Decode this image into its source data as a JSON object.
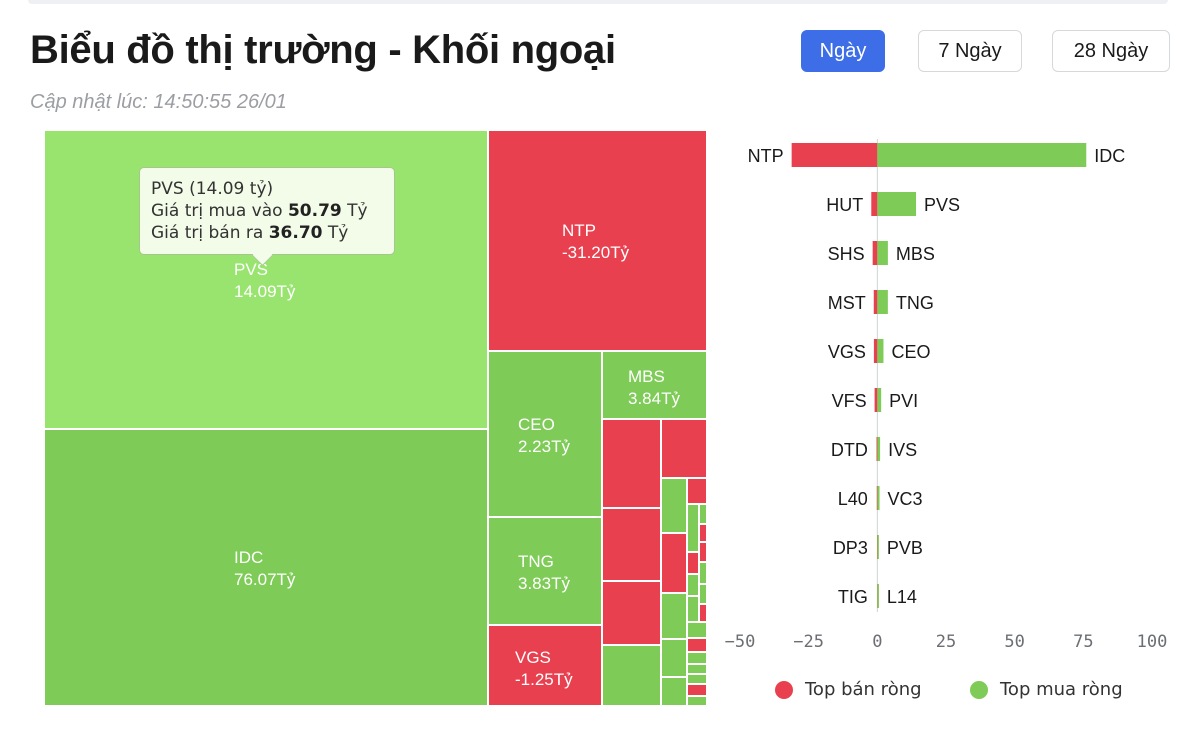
{
  "header": {
    "title": "Biểu đồ thị trường - Khối ngoại",
    "updated": "Cập nhật lúc: 14:50:55 26/01"
  },
  "tabs": [
    {
      "label": "Ngày",
      "active": true
    },
    {
      "label": "7 Ngày",
      "active": false
    },
    {
      "label": "28 Ngày",
      "active": false
    }
  ],
  "colors": {
    "buy": "#7ecb57",
    "buy_highlight": "#98e46f",
    "sell": "#e8404f",
    "accent": "#3d6ee8"
  },
  "tooltip": {
    "line1": "PVS (14.09 tỷ)",
    "line2_prefix": "Giá trị mua vào ",
    "line2_value": "50.79",
    "line2_unit": " Tỷ",
    "line3_prefix": "Giá trị bán ra ",
    "line3_value": "36.70",
    "line3_unit": " Tỷ"
  },
  "chart_data": [
    {
      "type": "treemap",
      "unit": "Tỷ",
      "labeled_cells": [
        {
          "name": "IDC",
          "label": "76.07Tỷ",
          "value": 76.07
        },
        {
          "name": "PVS",
          "label": "14.09Tỷ",
          "value": 14.09,
          "highlighted": true
        },
        {
          "name": "NTP",
          "label": "-31.20Tỷ",
          "value": -31.2
        },
        {
          "name": "CEO",
          "label": "2.23Tỷ",
          "value": 2.23
        },
        {
          "name": "MBS",
          "label": "3.84Tỷ",
          "value": 3.84
        },
        {
          "name": "TNG",
          "label": "3.83Tỷ",
          "value": 3.83
        },
        {
          "name": "VGS",
          "label": "-1.25Tỷ",
          "value": -1.25
        }
      ]
    },
    {
      "type": "bar",
      "orientation": "horizontal-diverging",
      "xlim": [
        -50,
        100
      ],
      "xticks": [
        "−50",
        "−25",
        "0",
        "25",
        "50",
        "75",
        "100"
      ],
      "grid": false,
      "legend_position": "bottom",
      "series": [
        {
          "name": "Top bán ròng",
          "color": "#e8404f",
          "categories": [
            "NTP",
            "HUT",
            "SHS",
            "MST",
            "VGS",
            "VFS",
            "DTD",
            "L40",
            "DP3",
            "TIG"
          ],
          "values": [
            -31.2,
            -2.2,
            -1.7,
            -1.3,
            -1.25,
            -1.0,
            -0.3,
            -0.2,
            -0.1,
            -0.05
          ]
        },
        {
          "name": "Top mua ròng",
          "color": "#7ecb57",
          "categories": [
            "IDC",
            "PVS",
            "MBS",
            "TNG",
            "CEO",
            "PVI",
            "IVS",
            "VC3",
            "PVB",
            "L14"
          ],
          "values": [
            76.07,
            14.09,
            3.84,
            3.83,
            2.23,
            1.4,
            1.0,
            0.8,
            0.5,
            0.3
          ]
        }
      ]
    }
  ]
}
